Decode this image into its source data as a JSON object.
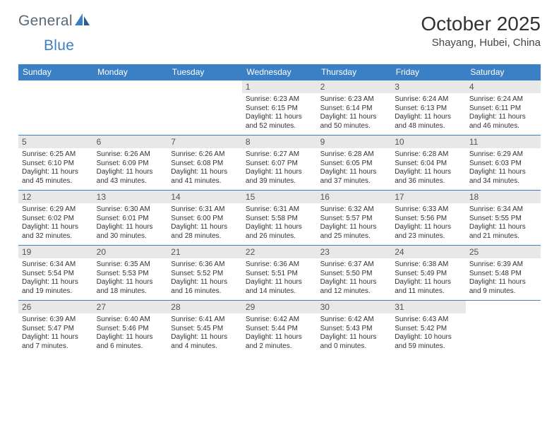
{
  "logo": {
    "text1": "General",
    "text2": "Blue"
  },
  "title": "October 2025",
  "location": "Shayang, Hubei, China",
  "colors": {
    "header_bg": "#3b7fc4",
    "header_text": "#ffffff",
    "daynum_bg": "#e8e8e8",
    "text": "#333333",
    "logo_gray": "#5a6a78",
    "logo_blue": "#3b7fc4"
  },
  "dow": [
    "Sunday",
    "Monday",
    "Tuesday",
    "Wednesday",
    "Thursday",
    "Friday",
    "Saturday"
  ],
  "weeks": [
    [
      {
        "n": "",
        "r": "",
        "s": "",
        "d": ""
      },
      {
        "n": "",
        "r": "",
        "s": "",
        "d": ""
      },
      {
        "n": "",
        "r": "",
        "s": "",
        "d": ""
      },
      {
        "n": "1",
        "r": "Sunrise: 6:23 AM",
        "s": "Sunset: 6:15 PM",
        "d": "Daylight: 11 hours and 52 minutes."
      },
      {
        "n": "2",
        "r": "Sunrise: 6:23 AM",
        "s": "Sunset: 6:14 PM",
        "d": "Daylight: 11 hours and 50 minutes."
      },
      {
        "n": "3",
        "r": "Sunrise: 6:24 AM",
        "s": "Sunset: 6:13 PM",
        "d": "Daylight: 11 hours and 48 minutes."
      },
      {
        "n": "4",
        "r": "Sunrise: 6:24 AM",
        "s": "Sunset: 6:11 PM",
        "d": "Daylight: 11 hours and 46 minutes."
      }
    ],
    [
      {
        "n": "5",
        "r": "Sunrise: 6:25 AM",
        "s": "Sunset: 6:10 PM",
        "d": "Daylight: 11 hours and 45 minutes."
      },
      {
        "n": "6",
        "r": "Sunrise: 6:26 AM",
        "s": "Sunset: 6:09 PM",
        "d": "Daylight: 11 hours and 43 minutes."
      },
      {
        "n": "7",
        "r": "Sunrise: 6:26 AM",
        "s": "Sunset: 6:08 PM",
        "d": "Daylight: 11 hours and 41 minutes."
      },
      {
        "n": "8",
        "r": "Sunrise: 6:27 AM",
        "s": "Sunset: 6:07 PM",
        "d": "Daylight: 11 hours and 39 minutes."
      },
      {
        "n": "9",
        "r": "Sunrise: 6:28 AM",
        "s": "Sunset: 6:05 PM",
        "d": "Daylight: 11 hours and 37 minutes."
      },
      {
        "n": "10",
        "r": "Sunrise: 6:28 AM",
        "s": "Sunset: 6:04 PM",
        "d": "Daylight: 11 hours and 36 minutes."
      },
      {
        "n": "11",
        "r": "Sunrise: 6:29 AM",
        "s": "Sunset: 6:03 PM",
        "d": "Daylight: 11 hours and 34 minutes."
      }
    ],
    [
      {
        "n": "12",
        "r": "Sunrise: 6:29 AM",
        "s": "Sunset: 6:02 PM",
        "d": "Daylight: 11 hours and 32 minutes."
      },
      {
        "n": "13",
        "r": "Sunrise: 6:30 AM",
        "s": "Sunset: 6:01 PM",
        "d": "Daylight: 11 hours and 30 minutes."
      },
      {
        "n": "14",
        "r": "Sunrise: 6:31 AM",
        "s": "Sunset: 6:00 PM",
        "d": "Daylight: 11 hours and 28 minutes."
      },
      {
        "n": "15",
        "r": "Sunrise: 6:31 AM",
        "s": "Sunset: 5:58 PM",
        "d": "Daylight: 11 hours and 26 minutes."
      },
      {
        "n": "16",
        "r": "Sunrise: 6:32 AM",
        "s": "Sunset: 5:57 PM",
        "d": "Daylight: 11 hours and 25 minutes."
      },
      {
        "n": "17",
        "r": "Sunrise: 6:33 AM",
        "s": "Sunset: 5:56 PM",
        "d": "Daylight: 11 hours and 23 minutes."
      },
      {
        "n": "18",
        "r": "Sunrise: 6:34 AM",
        "s": "Sunset: 5:55 PM",
        "d": "Daylight: 11 hours and 21 minutes."
      }
    ],
    [
      {
        "n": "19",
        "r": "Sunrise: 6:34 AM",
        "s": "Sunset: 5:54 PM",
        "d": "Daylight: 11 hours and 19 minutes."
      },
      {
        "n": "20",
        "r": "Sunrise: 6:35 AM",
        "s": "Sunset: 5:53 PM",
        "d": "Daylight: 11 hours and 18 minutes."
      },
      {
        "n": "21",
        "r": "Sunrise: 6:36 AM",
        "s": "Sunset: 5:52 PM",
        "d": "Daylight: 11 hours and 16 minutes."
      },
      {
        "n": "22",
        "r": "Sunrise: 6:36 AM",
        "s": "Sunset: 5:51 PM",
        "d": "Daylight: 11 hours and 14 minutes."
      },
      {
        "n": "23",
        "r": "Sunrise: 6:37 AM",
        "s": "Sunset: 5:50 PM",
        "d": "Daylight: 11 hours and 12 minutes."
      },
      {
        "n": "24",
        "r": "Sunrise: 6:38 AM",
        "s": "Sunset: 5:49 PM",
        "d": "Daylight: 11 hours and 11 minutes."
      },
      {
        "n": "25",
        "r": "Sunrise: 6:39 AM",
        "s": "Sunset: 5:48 PM",
        "d": "Daylight: 11 hours and 9 minutes."
      }
    ],
    [
      {
        "n": "26",
        "r": "Sunrise: 6:39 AM",
        "s": "Sunset: 5:47 PM",
        "d": "Daylight: 11 hours and 7 minutes."
      },
      {
        "n": "27",
        "r": "Sunrise: 6:40 AM",
        "s": "Sunset: 5:46 PM",
        "d": "Daylight: 11 hours and 6 minutes."
      },
      {
        "n": "28",
        "r": "Sunrise: 6:41 AM",
        "s": "Sunset: 5:45 PM",
        "d": "Daylight: 11 hours and 4 minutes."
      },
      {
        "n": "29",
        "r": "Sunrise: 6:42 AM",
        "s": "Sunset: 5:44 PM",
        "d": "Daylight: 11 hours and 2 minutes."
      },
      {
        "n": "30",
        "r": "Sunrise: 6:42 AM",
        "s": "Sunset: 5:43 PM",
        "d": "Daylight: 11 hours and 0 minutes."
      },
      {
        "n": "31",
        "r": "Sunrise: 6:43 AM",
        "s": "Sunset: 5:42 PM",
        "d": "Daylight: 10 hours and 59 minutes."
      },
      {
        "n": "",
        "r": "",
        "s": "",
        "d": ""
      }
    ]
  ]
}
